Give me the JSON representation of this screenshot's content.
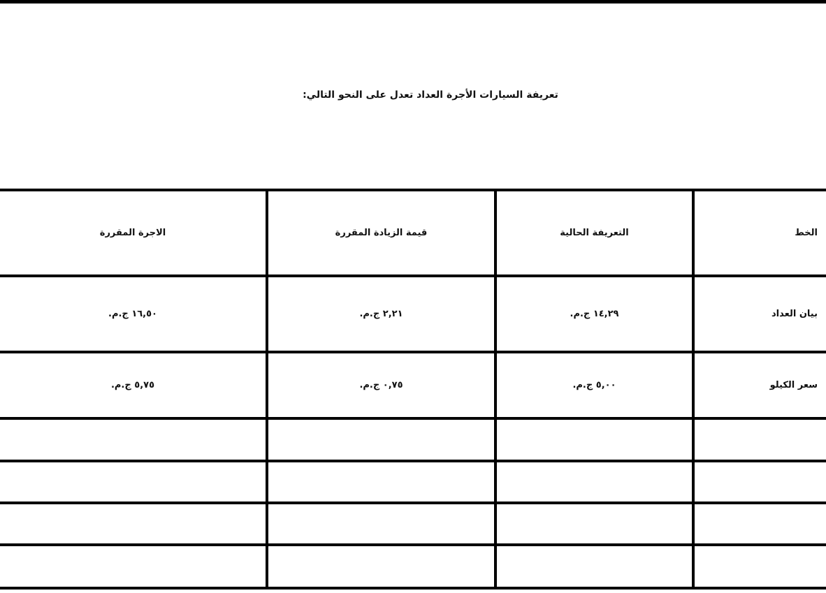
{
  "title": "تعريفة السيارات الأجرة العداد تعدل على النحو التالي:",
  "table": {
    "headers": [
      "الخط",
      "التعريفة الحالية",
      "قيمة الزيادة المقررة",
      "الاجرة المقررة"
    ],
    "rows": [
      [
        "بيان العداد",
        "١٤,٢٩ ج.م.",
        "٢,٢١ ج.م.",
        "١٦,٥٠ ج.م."
      ],
      [
        "سعر الكيلو",
        "٥,٠٠ ج.م.",
        "٠,٧٥ ج.م.",
        "٥,٧٥ ج.م."
      ]
    ]
  }
}
